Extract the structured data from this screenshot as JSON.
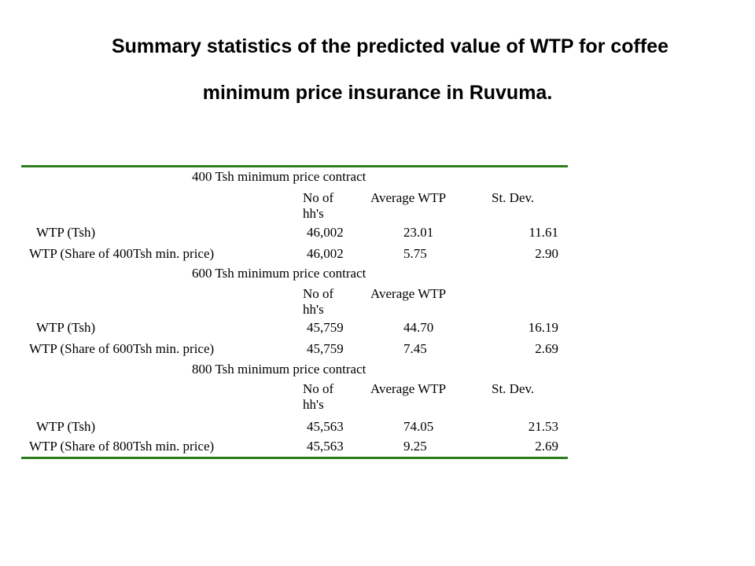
{
  "title": {
    "line1": "Summary statistics of the predicted value of WTP for coffee",
    "line2": "minimum price insurance in Ruvuma."
  },
  "colors": {
    "rule": "#2e7d1a"
  },
  "table": {
    "sections": [
      {
        "title": "400 Tsh minimum price contract",
        "headers": {
          "no_line1": "No of",
          "no_line2": "hh's",
          "avg": "Average WTP",
          "sd": "St. Dev."
        },
        "rows": [
          {
            "label": "WTP (Tsh)",
            "n": "46,002",
            "avg": "23.01",
            "sd": "11.61"
          },
          {
            "label": "WTP (Share of 400Tsh min. price)",
            "n": "46,002",
            "avg": "5.75",
            "sd": "2.90"
          }
        ]
      },
      {
        "title": "600 Tsh minimum price contract",
        "headers": {
          "no_line1": "No of",
          "no_line2": "hh's",
          "avg": "Average WTP",
          "sd": ""
        },
        "rows": [
          {
            "label": "WTP (Tsh)",
            "n": "45,759",
            "avg": "44.70",
            "sd": "16.19"
          },
          {
            "label": "WTP (Share of 600Tsh min. price)",
            "n": "45,759",
            "avg": "7.45",
            "sd": "2.69"
          }
        ]
      },
      {
        "title": "800 Tsh minimum price contract",
        "headers": {
          "no_line1": "No of",
          "no_line2": "hh's",
          "avg": "Average WTP",
          "sd": "St. Dev."
        },
        "rows": [
          {
            "label": "WTP (Tsh)",
            "n": "45,563",
            "avg": "74.05",
            "sd": "21.53"
          },
          {
            "label": "WTP (Share of 800Tsh min. price)",
            "n": "45,563",
            "avg": "9.25",
            "sd": "2.69"
          }
        ]
      }
    ]
  }
}
